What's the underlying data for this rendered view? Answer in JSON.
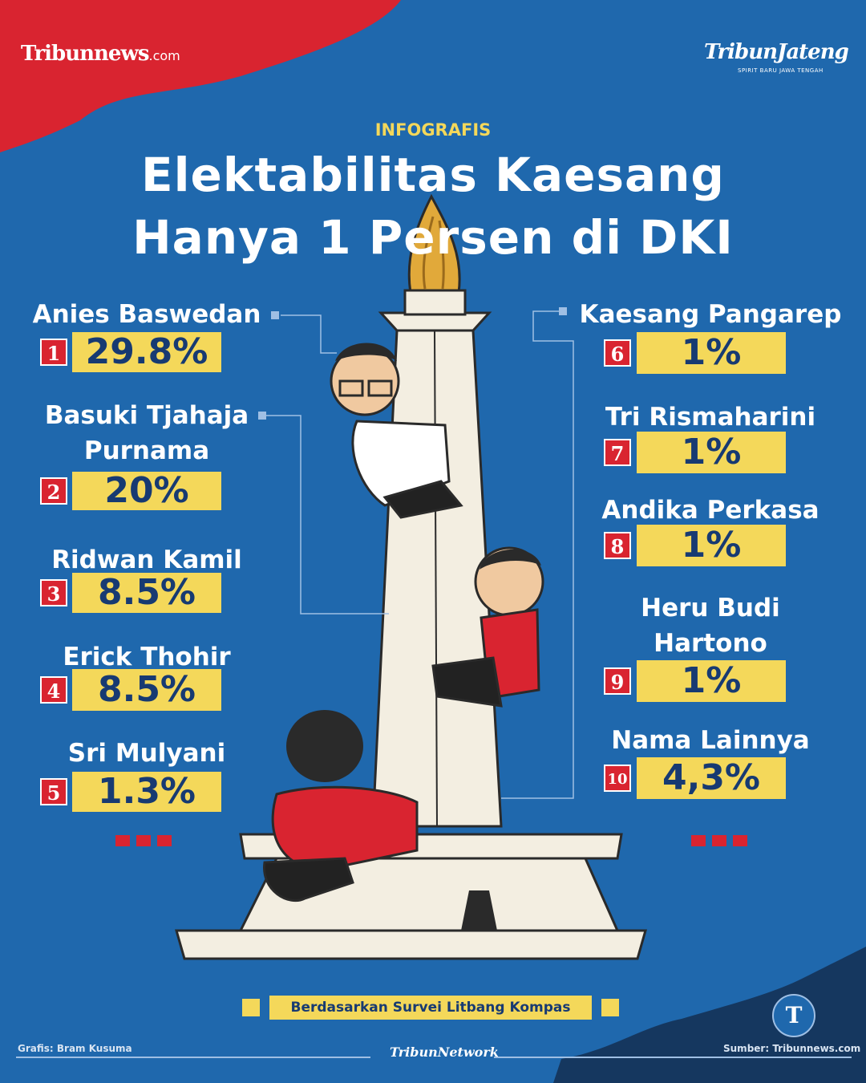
{
  "brand": {
    "left_name": "Tribunnews",
    "left_suffix": ".com",
    "right_name": "TribunJateng",
    "right_tagline": "SPIRIT BARU JAWA TENGAH",
    "network": "TribunNetwork",
    "t_logo": "T"
  },
  "header": {
    "kicker": "INFOGRAFIS",
    "title_line1": "Elektabilitas Kaesang",
    "title_line2": "Hanya 1 Persen di DKI"
  },
  "chart_data": {
    "type": "bar",
    "title": "Elektabilitas Kaesang Hanya 1 Persen di DKI",
    "unit": "%",
    "categories": [
      "Anies Baswedan",
      "Basuki Tjahaja Purnama",
      "Ridwan Kamil",
      "Erick Thohir",
      "Sri Mulyani",
      "Kaesang Pangarep",
      "Tri Rismaharini",
      "Andika Perkasa",
      "Heru Budi Hartono",
      "Nama Lainnya"
    ],
    "values": [
      29.8,
      20,
      8.5,
      8.5,
      1.3,
      1,
      1,
      1,
      1,
      4.3
    ],
    "entries": [
      {
        "rank": "1",
        "name_lines": [
          "Anies Baswedan"
        ],
        "label": "29.8%"
      },
      {
        "rank": "2",
        "name_lines": [
          "Basuki Tjahaja",
          "Purnama"
        ],
        "label": "20%"
      },
      {
        "rank": "3",
        "name_lines": [
          "Ridwan Kamil"
        ],
        "label": "8.5%"
      },
      {
        "rank": "4",
        "name_lines": [
          "Erick Thohir"
        ],
        "label": "8.5%"
      },
      {
        "rank": "5",
        "name_lines": [
          "Sri Mulyani"
        ],
        "label": "1.3%"
      },
      {
        "rank": "6",
        "name_lines": [
          "Kaesang Pangarep"
        ],
        "label": "1%"
      },
      {
        "rank": "7",
        "name_lines": [
          "Tri Rismaharini"
        ],
        "label": "1%"
      },
      {
        "rank": "8",
        "name_lines": [
          "Andika Perkasa"
        ],
        "label": "1%"
      },
      {
        "rank": "9",
        "name_lines": [
          "Heru Budi",
          "Hartono"
        ],
        "label": "1%"
      },
      {
        "rank": "10",
        "name_lines": [
          "Nama Lainnya"
        ],
        "label": "4,3%"
      }
    ]
  },
  "footer": {
    "source_note": "Berdasarkan Survei Litbang Kompas",
    "credit": "Grafis: Bram Kusuma",
    "source": "Sumber: Tribunnews.com"
  },
  "colors": {
    "background": "#1f68ad",
    "accent_red": "#d92430",
    "accent_yellow": "#f4d85a",
    "text_dark": "#173a72",
    "dark_navy": "#15375f"
  },
  "illustration": "Monas monument with caricatures climbing"
}
